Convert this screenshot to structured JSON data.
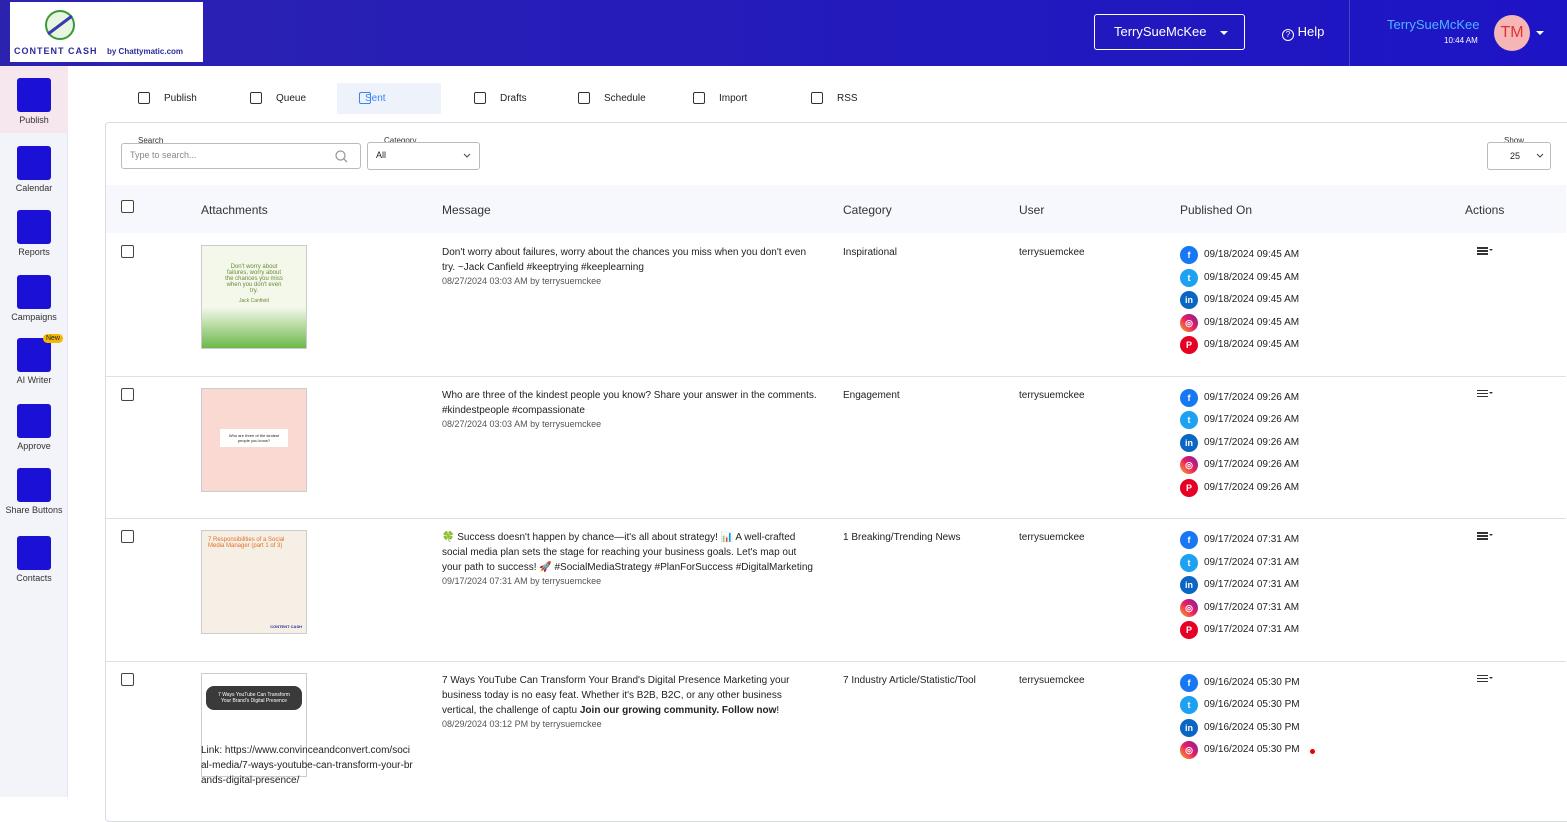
{
  "header": {
    "logo_title": "CONTENT CASH",
    "logo_subtitle": "by Chattymatic.com",
    "account": "TerrySueMcKee",
    "help": "Help",
    "user_name": "TerrySueMcKee",
    "time": "10:44 AM",
    "avatar": "TM"
  },
  "sidebar": {
    "items": [
      {
        "label": "Publish"
      },
      {
        "label": "Calendar"
      },
      {
        "label": "Reports"
      },
      {
        "label": "Campaigns"
      },
      {
        "label": "AI Writer",
        "badge": "New"
      },
      {
        "label": "Approve"
      },
      {
        "label": "Share Buttons"
      },
      {
        "label": "Contacts"
      }
    ]
  },
  "tabs": [
    "Publish",
    "Queue",
    "Sent",
    "Drafts",
    "Schedule",
    "Import",
    "RSS"
  ],
  "filters": {
    "search_label": "Search",
    "search_placeholder": "Type to search...",
    "category_label": "Category",
    "category_value": "All",
    "show_label": "Show",
    "show_value": "25"
  },
  "table": {
    "headers": [
      "Attachments",
      "Message",
      "Category",
      "User",
      "Published On",
      "Actions"
    ],
    "rows": [
      {
        "thumb_text": "Don't worry about failures, worry about the chances you miss when you don't even try.",
        "thumb_author": "Jack Canfield",
        "message": "Don't worry about failures, worry about the chances you miss when you don't even try. ~Jack Canfield #keeptrying #keeplearning",
        "meta": "08/27/2024 03:03 AM by terrysuemckee",
        "category": "Inspirational",
        "user": "terrysuemckee",
        "published": [
          {
            "platform": "facebook",
            "time": "09/18/2024 09:45 AM"
          },
          {
            "platform": "twitter",
            "time": "09/18/2024 09:45 AM"
          },
          {
            "platform": "linkedin",
            "time": "09/18/2024 09:45 AM"
          },
          {
            "platform": "instagram",
            "time": "09/18/2024 09:45 AM"
          },
          {
            "platform": "pinterest",
            "time": "09/18/2024 09:45 AM"
          }
        ]
      },
      {
        "thumb_text": "Who are three of the kindest people you know?",
        "message": "Who are three of the kindest people you know? Share your answer in the comments. #kindestpeople #compassionate",
        "meta": "08/27/2024 03:03 AM by terrysuemckee",
        "category": "Engagement",
        "user": "terrysuemckee",
        "published": [
          {
            "platform": "facebook",
            "time": "09/17/2024 09:26 AM"
          },
          {
            "platform": "twitter",
            "time": "09/17/2024 09:26 AM"
          },
          {
            "platform": "linkedin",
            "time": "09/17/2024 09:26 AM"
          },
          {
            "platform": "instagram",
            "time": "09/17/2024 09:26 AM"
          },
          {
            "platform": "pinterest",
            "time": "09/17/2024 09:26 AM"
          }
        ]
      },
      {
        "thumb_text": "7 Responsibilities of a Social Media Manager (part 1 of 3)",
        "thumb_author": "CONTENT CASH",
        "message": "🍀 Success doesn't happen by chance—it's all about strategy! 📊 A well-crafted social media plan sets the stage for reaching your business goals. Let's map out your path to success! 🚀 #SocialMediaStrategy #PlanForSuccess #DigitalMarketing",
        "meta": "09/17/2024 07:31 AM by terrysuemckee",
        "category": "1 Breaking/Trending News",
        "user": "terrysuemckee",
        "published": [
          {
            "platform": "facebook",
            "time": "09/17/2024 07:31 AM"
          },
          {
            "platform": "twitter",
            "time": "09/17/2024 07:31 AM"
          },
          {
            "platform": "linkedin",
            "time": "09/17/2024 07:31 AM"
          },
          {
            "platform": "instagram",
            "time": "09/17/2024 07:31 AM"
          },
          {
            "platform": "pinterest",
            "time": "09/17/2024 07:31 AM"
          }
        ]
      },
      {
        "thumb_text": "7 Ways YouTube Can Transform Your Brand's Digital Presence",
        "message": "7 Ways YouTube Can Transform Your Brand's Digital Presence Marketing your business today is no easy feat. Whether it's B2B, B2C, or any other business vertical, the challenge of captu ",
        "message_strong": "Join our growing community. Follow now",
        "message_end": "!",
        "meta": "08/29/2024 03:12 PM by terrysuemckee",
        "category": "7 Industry Article/Statistic/Tool",
        "user": "terrysuemckee",
        "link": "Link: https://www.convinceandconvert.com/social-media/7-ways-youtube-can-transform-your-brands-digital-presence/",
        "published": [
          {
            "platform": "facebook",
            "time": "09/16/2024 05:30 PM"
          },
          {
            "platform": "twitter",
            "time": "09/16/2024 05:30 PM"
          },
          {
            "platform": "linkedin",
            "time": "09/16/2024 05:30 PM"
          },
          {
            "platform": "instagram",
            "time": "09/16/2024 05:30 PM"
          }
        ]
      }
    ]
  }
}
